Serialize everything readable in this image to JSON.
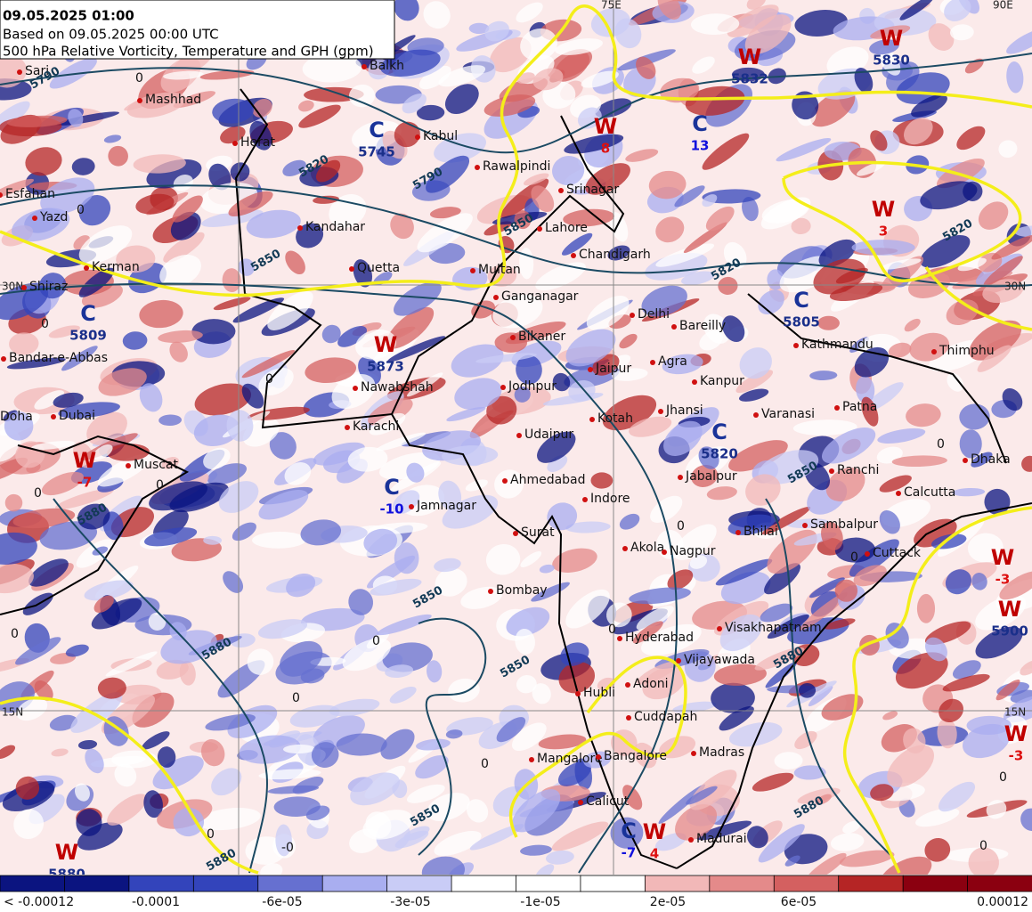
{
  "header": {
    "lines": [
      "09.05.2025 01:00",
      "Based on 09.05.2025 00:00 UTC",
      "500 hPa Relative Vorticity, Temperature and GPH (gpm)"
    ]
  },
  "colorbar": {
    "colors": [
      "#0b1480",
      "#0b1480",
      "#3344bb",
      "#3344bb",
      "#6670d0",
      "#a9aef0",
      "#c9ccf6",
      "#ffffff",
      "#ffffff",
      "#ffffff",
      "#f2b8b8",
      "#e48a8a",
      "#d46060",
      "#b52525",
      "#8b0010",
      "#8b0010"
    ],
    "labels": [
      "< -0.00012",
      "-0.0001",
      "-6e-05",
      "-3e-05",
      "-1e-05",
      "2e-05",
      "6e-05",
      "0.00012"
    ]
  },
  "grid_labels": [
    "30N",
    "15N",
    "30N",
    "15N",
    "75E",
    "90E"
  ],
  "cities": [
    "Sari",
    "Mashhad",
    "Balkh",
    "Herat",
    "Kabul",
    "Esfahan",
    "Yazd",
    "Kandahar",
    "Kerman",
    "Quetta",
    "Shiraz",
    "Multan",
    "Lahore",
    "Chandigarh",
    "Ganganagar",
    "Delhi",
    "Bareilly",
    "Bikaner",
    "Bandar-e-Abbas",
    "Nawabshah",
    "Jaipur",
    "Agra",
    "Kanpur",
    "Jodhpur",
    "Kathmandu",
    "Patna",
    "Karachi",
    "Doha",
    "Dubai",
    "Kotah",
    "Jhansi",
    "Varanasi",
    "Udaipur",
    "Ranchi",
    "Dhaka",
    "Muscat",
    "Ahmedabad",
    "Jabalpur",
    "Calcutta",
    "Jamnagar",
    "Indore",
    "Sambalpur",
    "Surat",
    "Bhilai",
    "Akola",
    "Nagpur",
    "Cuttack",
    "Bombay",
    "Hyderabad",
    "Visakhapatnam",
    "Vijayawada",
    "Hubli",
    "Adoni",
    "Cuddapah",
    "Mangalore",
    "Bangalore",
    "Madras",
    "Calicut",
    "Madurai",
    "Rawalpindi",
    "Srinagar",
    "Thimphu"
  ],
  "systems": [
    {
      "letter": "W",
      "value": "5873",
      "letter_color": "#c00000",
      "value_color": "#1a2f8a"
    },
    {
      "letter": "C",
      "value": "-10",
      "letter_color": "#1a3399",
      "value_color": "#1010dd"
    },
    {
      "letter": "C",
      "value": "5820",
      "letter_color": "#1a3399",
      "value_color": "#1a2f8a"
    },
    {
      "letter": "C",
      "value": "5745",
      "letter_color": "#1a3399",
      "value_color": "#1a2f8a"
    },
    {
      "letter": "C",
      "value": "5809",
      "letter_color": "#1a3399",
      "value_color": "#1a2f8a"
    },
    {
      "letter": "W",
      "value": "-7",
      "letter_color": "#c00000",
      "value_color": "#dd1010"
    },
    {
      "letter": "W",
      "value": "-3",
      "letter_color": "#c00000",
      "value_color": "#dd1010"
    },
    {
      "letter": "W",
      "value": "5900",
      "letter_color": "#c00000",
      "value_color": "#1a2f8a"
    },
    {
      "letter": "W",
      "value": "-3",
      "letter_color": "#c00000",
      "value_color": "#dd1010"
    },
    {
      "letter": "C",
      "value": "-7",
      "letter_color": "#1a3399",
      "value_color": "#1010dd"
    },
    {
      "letter": "W",
      "value": "4",
      "letter_color": "#c00000",
      "value_color": "#dd1010"
    },
    {
      "letter": "W",
      "value": "5880",
      "letter_color": "#c00000",
      "value_color": "#1a2f8a"
    },
    {
      "letter": "W",
      "value": "5830",
      "letter_color": "#c00000",
      "value_color": "#1a2f8a"
    },
    {
      "letter": "W",
      "value": "5832",
      "letter_color": "#c00000",
      "value_color": "#1a2f8a"
    },
    {
      "letter": "C",
      "value": "13",
      "letter_color": "#1a3399",
      "value_color": "#1010dd"
    },
    {
      "letter": "W",
      "value": "8",
      "letter_color": "#c00000",
      "value_color": "#dd1010"
    },
    {
      "letter": "W",
      "value": "3",
      "letter_color": "#c00000",
      "value_color": "#dd1010"
    },
    {
      "letter": "C",
      "value": "5805",
      "letter_color": "#1a3399",
      "value_color": "#1a2f8a"
    }
  ],
  "contour_labels": [
    "5790",
    "5820",
    "5790",
    "5850",
    "5850",
    "5820",
    "5880",
    "5850",
    "5850",
    "5880",
    "5850",
    "5880",
    "5850",
    "5880",
    "5820",
    "5880"
  ],
  "temp_labels": [
    "0",
    "0",
    "0",
    "0",
    "0",
    "0",
    "0",
    "0",
    "0",
    "0",
    "0",
    "0",
    "0",
    "0",
    "0",
    "-0",
    "0",
    "0"
  ]
}
